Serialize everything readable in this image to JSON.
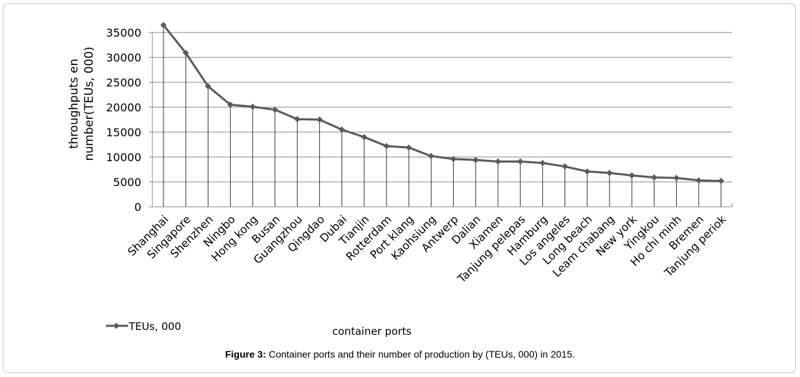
{
  "caption": {
    "label": "Figure 3:",
    "text": " Container ports and their number of production by (TEUs, 000) in 2015."
  },
  "chart_data": {
    "type": "line",
    "title": "",
    "xlabel": "container ports",
    "ylabel_lines": [
      "throughputs en",
      "number(TEUs, 000)"
    ],
    "ylim": [
      0,
      35000
    ],
    "yticks": [
      0,
      5000,
      10000,
      15000,
      20000,
      25000,
      30000,
      35000
    ],
    "grid": true,
    "legend_position": "bottom-left",
    "categories": [
      "Shanghai",
      "Singapore",
      "Shenzhen",
      "Ningbo",
      "Hong kong",
      "Busan",
      "Guangzhou",
      "Qingdao",
      "Dubai",
      "Tianjin",
      "Rotterdam",
      "Port klang",
      "Kaohsiung",
      "Antwerp",
      "Dalian",
      "Xiamen",
      "Tanjung pelepas",
      "Hamburg",
      "Los angeles",
      "Long beach",
      "Leam chabang",
      "New york",
      "Yingkou",
      "Ho chi minh",
      "Bremen",
      "Tanjung periok"
    ],
    "series": [
      {
        "name": "TEUs, 000",
        "color": "#5a5a5a",
        "values": [
          36500,
          30900,
          24200,
          20500,
          20100,
          19500,
          17600,
          17500,
          15500,
          14000,
          12200,
          11900,
          10200,
          9600,
          9400,
          9100,
          9100,
          8800,
          8100,
          7100,
          6800,
          6300,
          5900,
          5800,
          5300,
          5200
        ]
      }
    ]
  }
}
